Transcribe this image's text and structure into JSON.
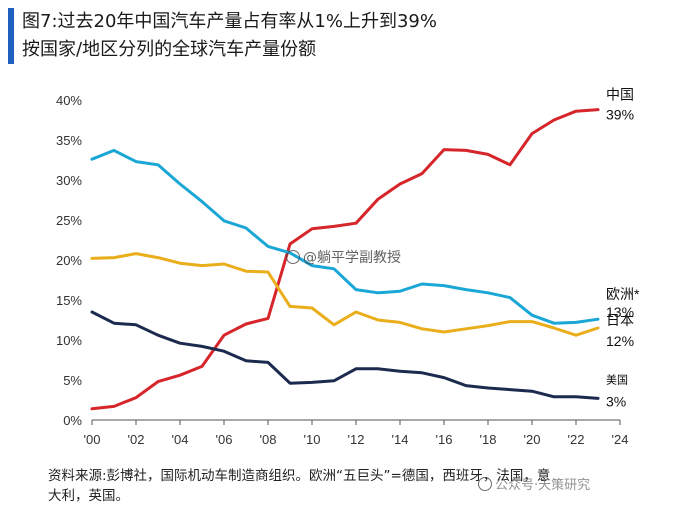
{
  "chart_data": {
    "type": "line",
    "title": "图7:过去20年中国汽车产量占有率从1%上升到39%",
    "subtitle": "按国家/地区分列的全球汽车产量份额",
    "x": [
      2000,
      2001,
      2002,
      2003,
      2004,
      2005,
      2006,
      2007,
      2008,
      2009,
      2010,
      2011,
      2012,
      2013,
      2014,
      2015,
      2016,
      2017,
      2018,
      2019,
      2020,
      2021,
      2022,
      2023
    ],
    "x_ticks": [
      2000,
      2002,
      2004,
      2006,
      2008,
      2010,
      2012,
      2014,
      2016,
      2018,
      2020,
      2022,
      2024
    ],
    "x_tick_labels": [
      "'00",
      "'02",
      "'04",
      "'06",
      "'08",
      "'10",
      "'12",
      "'14",
      "'16",
      "'18",
      "'20",
      "'22",
      "'24"
    ],
    "xlim": [
      2000,
      2024
    ],
    "ylim": [
      0,
      40
    ],
    "y_ticks": [
      0,
      5,
      10,
      15,
      20,
      25,
      30,
      35,
      40
    ],
    "y_tick_labels": [
      "0%",
      "5%",
      "10%",
      "15%",
      "20%",
      "25%",
      "30%",
      "35%",
      "40%"
    ],
    "grid": false,
    "series": [
      {
        "name": "中国",
        "end_label": "39%",
        "color": "#d6262b",
        "values": [
          1.4,
          1.7,
          2.8,
          4.8,
          5.6,
          6.7,
          10.6,
          12.0,
          12.7,
          22.0,
          23.9,
          24.2,
          24.6,
          27.6,
          29.5,
          30.8,
          33.8,
          33.7,
          33.2,
          31.9,
          35.8,
          37.5,
          38.6,
          38.8
        ]
      },
      {
        "name": "欧洲*",
        "end_label": "13%",
        "color": "#1aa7d6",
        "values": [
          32.6,
          33.7,
          32.3,
          31.9,
          29.5,
          27.3,
          24.9,
          24.0,
          21.7,
          20.9,
          19.3,
          18.9,
          16.3,
          15.9,
          16.1,
          17.0,
          16.8,
          16.3,
          15.9,
          15.3,
          13.1,
          12.1,
          12.2,
          12.6
        ]
      },
      {
        "name": "日本",
        "end_label": "12%",
        "color": "#eaae1b",
        "values": [
          20.2,
          20.3,
          20.8,
          20.3,
          19.6,
          19.3,
          19.5,
          18.6,
          18.5,
          14.2,
          14.0,
          11.9,
          13.5,
          12.5,
          12.2,
          11.4,
          11.0,
          11.4,
          11.8,
          12.3,
          12.3,
          11.5,
          10.6,
          11.5
        ]
      },
      {
        "name": "美国",
        "end_label": "3%",
        "color": "#1b2a4e",
        "values": [
          13.5,
          12.1,
          11.9,
          10.6,
          9.6,
          9.2,
          8.6,
          7.4,
          7.2,
          4.6,
          4.7,
          4.9,
          6.4,
          6.4,
          6.1,
          5.9,
          5.3,
          4.3,
          4.0,
          3.8,
          3.6,
          2.9,
          2.9,
          2.7
        ]
      }
    ]
  },
  "footer": {
    "source_line1": "资料来源:彭博社，国际机动车制造商组织。欧洲“五巨头”=德国，西班牙，法国，意",
    "source_line2": "大利，英国。"
  },
  "watermarks": {
    "center": "@躺平学副教授",
    "bottom_right": "公众号·天策研究"
  }
}
